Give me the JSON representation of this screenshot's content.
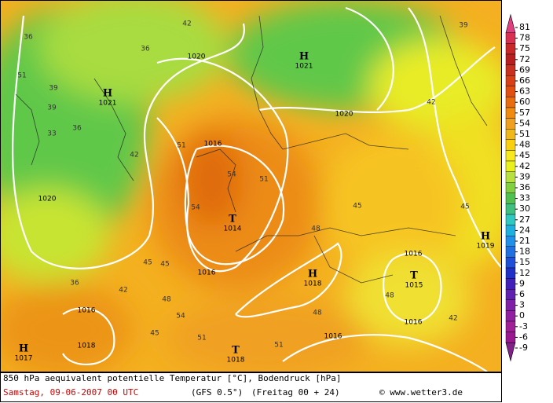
{
  "map": {
    "pressure_centers": [
      {
        "symbol": "H",
        "pressure": "1021"
      },
      {
        "symbol": "H",
        "pressure": "1021"
      },
      {
        "symbol": "T",
        "pressure": "1014"
      },
      {
        "symbol": "H",
        "pressure": "1018"
      },
      {
        "symbol": "T",
        "pressure": "1015"
      },
      {
        "symbol": "H",
        "pressure": "1019"
      },
      {
        "symbol": "T",
        "pressure": "1018"
      },
      {
        "symbol": "H",
        "pressure": "1017"
      }
    ],
    "isobar_labels": [
      "1020",
      "1020",
      "1016",
      "1020",
      "1016",
      "1016",
      "1016",
      "1016",
      "1016",
      "1018"
    ],
    "isotherm_labels": [
      "36",
      "42",
      "36",
      "51",
      "39",
      "33",
      "39",
      "36",
      "42",
      "51",
      "45",
      "54",
      "51",
      "54",
      "48",
      "45",
      "48",
      "42",
      "45",
      "36",
      "48",
      "54",
      "51",
      "45",
      "48",
      "42",
      "45",
      "39",
      "42",
      "51"
    ]
  },
  "legend": {
    "ticks": [
      81,
      78,
      75,
      72,
      69,
      66,
      63,
      60,
      57,
      54,
      51,
      48,
      45,
      42,
      39,
      36,
      33,
      30,
      27,
      24,
      21,
      18,
      15,
      12,
      9,
      6,
      3,
      0,
      -3,
      -6,
      -9
    ],
    "colors": [
      "#e04080",
      "#d83050",
      "#c82828",
      "#b82020",
      "#c83020",
      "#d84018",
      "#e05010",
      "#e86c10",
      "#f08a10",
      "#f0a020",
      "#f0b818",
      "#f8d010",
      "#f8e820",
      "#e8f020",
      "#b8e040",
      "#80d040",
      "#50c050",
      "#40c080",
      "#30c8c0",
      "#20b0e0",
      "#2090e8",
      "#2070e0",
      "#2050d8",
      "#2030c8",
      "#4020b8",
      "#6020b0",
      "#8020a8",
      "#9020a0",
      "#a02098",
      "#9a1890",
      "#802088"
    ]
  },
  "footer": {
    "title": "850 hPa aequivalent potentielle Temperatur [°C], Bodendruck [hPa]",
    "date": "Samstag, 09-06-2007  00 UTC",
    "model": "(GFS 0.5°)",
    "run": "(Freitag 00 + 24)",
    "credit": "© www.wetter3.de"
  }
}
